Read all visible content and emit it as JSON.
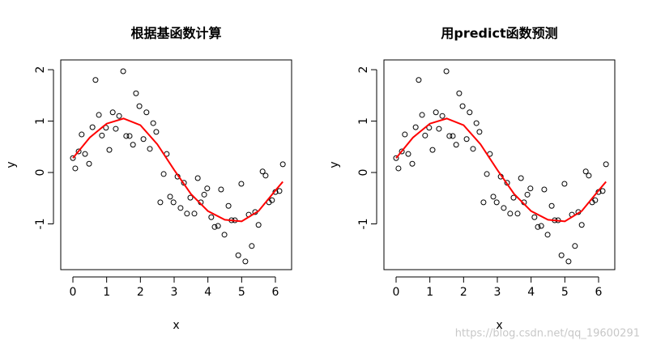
{
  "chart_data": [
    {
      "type": "scatter",
      "title": "根据基函数计算",
      "x_label": "x",
      "y_label": "y",
      "xlim": [
        -0.36,
        6.48
      ],
      "ylim": [
        -1.89,
        2.19
      ],
      "xticks": [
        0,
        1,
        2,
        3,
        4,
        5,
        6
      ],
      "yticks": [
        -1,
        0,
        1,
        2
      ],
      "point_color": "#000000",
      "line_color": "#ff0000",
      "x": [
        0,
        0.07,
        0.17,
        0.26,
        0.36,
        0.48,
        0.58,
        0.67,
        0.77,
        0.86,
        0.98,
        1.08,
        1.18,
        1.27,
        1.37,
        1.49,
        1.58,
        1.68,
        1.78,
        1.87,
        1.97,
        2.09,
        2.18,
        2.28,
        2.38,
        2.47,
        2.59,
        2.69,
        2.78,
        2.88,
        2.98,
        3.1,
        3.19,
        3.29,
        3.38,
        3.48,
        3.6,
        3.7,
        3.79,
        3.89,
        3.98,
        4.1,
        4.2,
        4.3,
        4.39,
        4.49,
        4.61,
        4.7,
        4.8,
        4.9,
        4.99,
        5.11,
        5.21,
        5.3,
        5.4,
        5.5,
        5.62,
        5.71,
        5.81,
        5.9,
        6,
        6.12,
        6.22
      ],
      "values": [
        0.28,
        0.08,
        0.41,
        0.74,
        0.36,
        0.17,
        0.88,
        1.8,
        1.12,
        0.72,
        0.87,
        0.44,
        1.17,
        0.85,
        1.1,
        1.97,
        0.71,
        0.71,
        0.54,
        1.54,
        1.29,
        0.65,
        1.17,
        0.46,
        0.96,
        0.79,
        -0.58,
        -0.03,
        0.36,
        -0.47,
        -0.58,
        -0.08,
        -0.69,
        -0.2,
        -0.8,
        -0.49,
        -0.8,
        -0.11,
        -0.58,
        -0.43,
        -0.31,
        -0.87,
        -1.06,
        -1.04,
        -0.33,
        -1.21,
        -0.65,
        -0.93,
        -0.93,
        -1.61,
        -0.22,
        -1.73,
        -0.82,
        -1.43,
        -0.77,
        -1.02,
        0.02,
        -0.06,
        -0.58,
        -0.54,
        -0.38,
        -0.36,
        0.16
      ],
      "line_x": [
        0,
        0.5,
        1,
        1.5,
        2,
        2.5,
        3,
        3.5,
        4,
        4.5,
        5,
        5.5,
        6,
        6.22
      ],
      "line_values": [
        0.28,
        0.68,
        0.95,
        1.05,
        0.92,
        0.55,
        0.05,
        -0.42,
        -0.75,
        -0.92,
        -0.95,
        -0.75,
        -0.35,
        -0.18
      ]
    },
    {
      "type": "scatter",
      "title": "用predict函数预测",
      "x_label": "x",
      "y_label": "y",
      "xlim": [
        -0.36,
        6.48
      ],
      "ylim": [
        -1.89,
        2.19
      ],
      "xticks": [
        0,
        1,
        2,
        3,
        4,
        5,
        6
      ],
      "yticks": [
        -1,
        0,
        1,
        2
      ],
      "point_color": "#000000",
      "line_color": "#ff0000",
      "x": [
        0,
        0.07,
        0.17,
        0.26,
        0.36,
        0.48,
        0.58,
        0.67,
        0.77,
        0.86,
        0.98,
        1.08,
        1.18,
        1.27,
        1.37,
        1.49,
        1.58,
        1.68,
        1.78,
        1.87,
        1.97,
        2.09,
        2.18,
        2.28,
        2.38,
        2.47,
        2.59,
        2.69,
        2.78,
        2.88,
        2.98,
        3.1,
        3.19,
        3.29,
        3.38,
        3.48,
        3.6,
        3.7,
        3.79,
        3.89,
        3.98,
        4.1,
        4.2,
        4.3,
        4.39,
        4.49,
        4.61,
        4.7,
        4.8,
        4.9,
        4.99,
        5.11,
        5.21,
        5.3,
        5.4,
        5.5,
        5.62,
        5.71,
        5.81,
        5.9,
        6,
        6.12,
        6.22
      ],
      "values": [
        0.28,
        0.08,
        0.41,
        0.74,
        0.36,
        0.17,
        0.88,
        1.8,
        1.12,
        0.72,
        0.87,
        0.44,
        1.17,
        0.85,
        1.1,
        1.97,
        0.71,
        0.71,
        0.54,
        1.54,
        1.29,
        0.65,
        1.17,
        0.46,
        0.96,
        0.79,
        -0.58,
        -0.03,
        0.36,
        -0.47,
        -0.58,
        -0.08,
        -0.69,
        -0.2,
        -0.8,
        -0.49,
        -0.8,
        -0.11,
        -0.58,
        -0.43,
        -0.31,
        -0.87,
        -1.06,
        -1.04,
        -0.33,
        -1.21,
        -0.65,
        -0.93,
        -0.93,
        -1.61,
        -0.22,
        -1.73,
        -0.82,
        -1.43,
        -0.77,
        -1.02,
        0.02,
        -0.06,
        -0.58,
        -0.54,
        -0.38,
        -0.36,
        0.16
      ],
      "line_x": [
        0,
        0.5,
        1,
        1.5,
        2,
        2.5,
        3,
        3.5,
        4,
        4.5,
        5,
        5.5,
        6,
        6.22
      ],
      "line_values": [
        0.28,
        0.68,
        0.95,
        1.05,
        0.92,
        0.55,
        0.05,
        -0.42,
        -0.75,
        -0.92,
        -0.95,
        -0.75,
        -0.35,
        -0.18
      ]
    }
  ],
  "watermark": "https://blog.csdn.net/qq_19600291"
}
